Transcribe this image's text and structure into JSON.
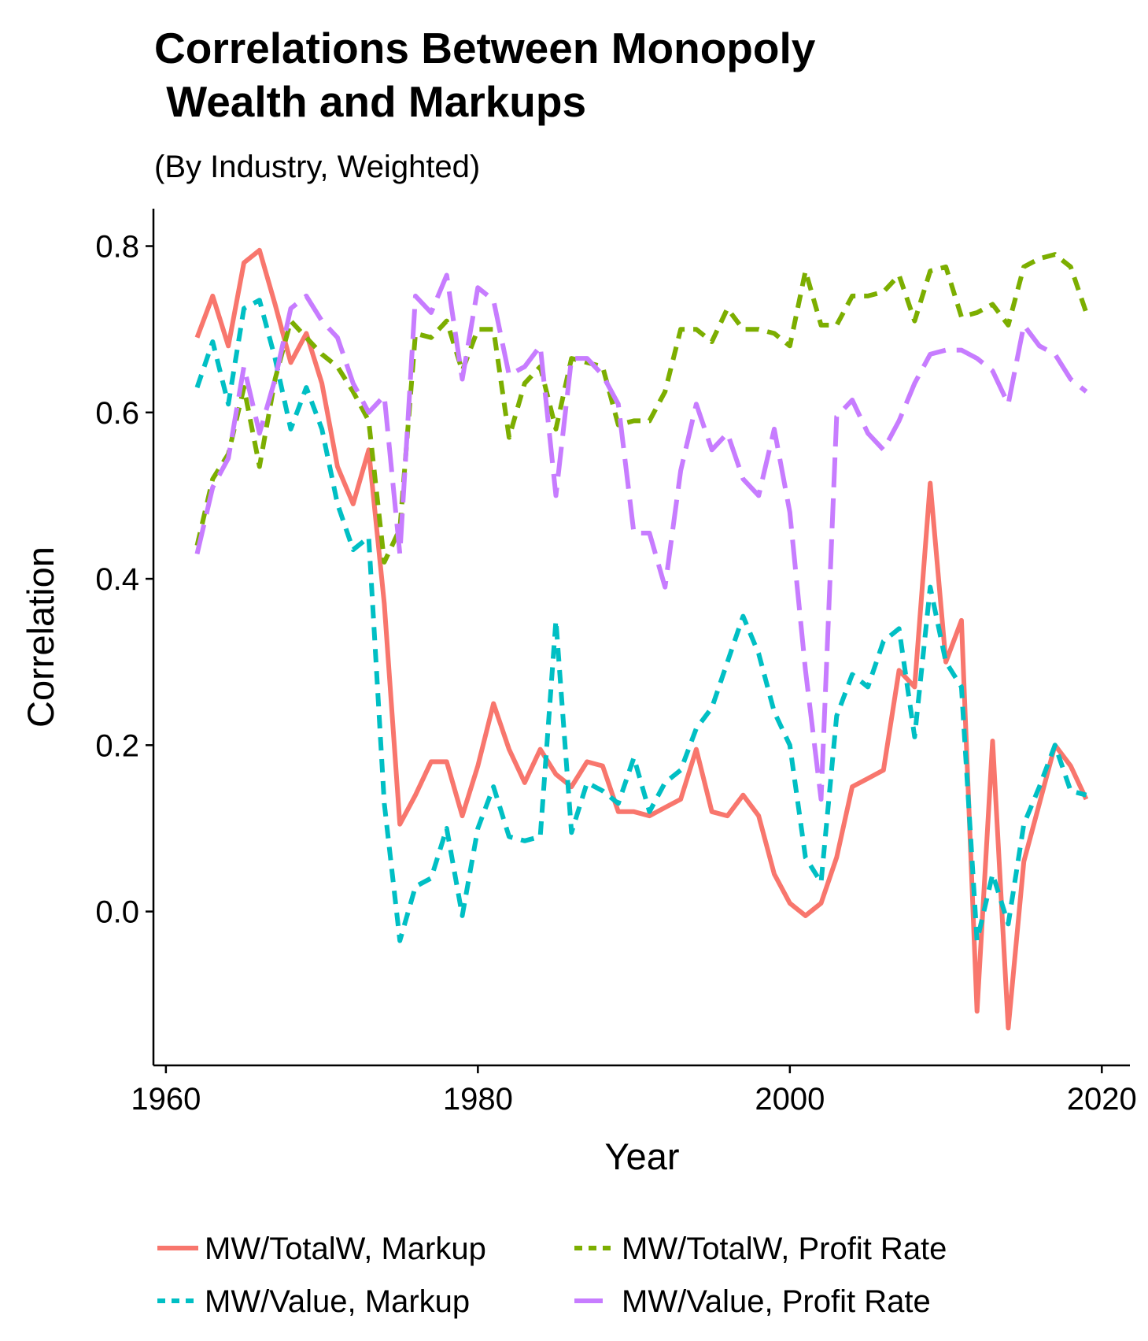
{
  "chart_data": {
    "type": "line",
    "title_lines": [
      "Correlations Between Monopoly",
      " Wealth and Markups"
    ],
    "subtitle": "(By Industry, Weighted)",
    "xlabel": "Year",
    "ylabel": "Correlation",
    "xlim": [
      1959.2,
      2021.8
    ],
    "ylim": [
      -0.185,
      0.845
    ],
    "x_ticks": [
      1960,
      1980,
      2000,
      2020
    ],
    "y_ticks": [
      0.0,
      0.2,
      0.4,
      0.6,
      0.8
    ],
    "x_tick_labels": [
      "1960",
      "1980",
      "2000",
      "2020"
    ],
    "y_tick_labels": [
      "0.0",
      "0.2",
      "0.4",
      "0.6",
      "0.8"
    ],
    "grid": false,
    "legend_position": "bottom",
    "years": [
      1962,
      1963,
      1964,
      1965,
      1966,
      1967,
      1968,
      1969,
      1970,
      1971,
      1972,
      1973,
      1974,
      1975,
      1976,
      1977,
      1978,
      1979,
      1980,
      1981,
      1982,
      1983,
      1984,
      1985,
      1986,
      1987,
      1988,
      1989,
      1990,
      1991,
      1992,
      1993,
      1994,
      1995,
      1996,
      1997,
      1998,
      1999,
      2000,
      2001,
      2002,
      2003,
      2004,
      2005,
      2006,
      2007,
      2008,
      2009,
      2010,
      2011,
      2012,
      2013,
      2014,
      2015,
      2016,
      2017,
      2018,
      2019
    ],
    "series": [
      {
        "name": "MW/TotalW, Markup",
        "color": "#F8766D",
        "dash": "solid",
        "values": [
          0.69,
          0.74,
          0.68,
          0.78,
          0.795,
          0.73,
          0.66,
          0.695,
          0.635,
          0.535,
          0.49,
          0.555,
          0.37,
          0.105,
          0.14,
          0.18,
          0.18,
          0.115,
          0.175,
          0.25,
          0.195,
          0.155,
          0.195,
          0.165,
          0.15,
          0.18,
          0.175,
          0.12,
          0.12,
          0.115,
          0.125,
          0.135,
          0.195,
          0.12,
          0.115,
          0.14,
          0.115,
          0.045,
          0.01,
          -0.005,
          0.01,
          0.065,
          0.15,
          0.16,
          0.17,
          0.29,
          0.27,
          0.515,
          0.3,
          0.35,
          -0.12,
          0.205,
          -0.14,
          0.06,
          0.13,
          0.2,
          0.175,
          0.135
        ]
      },
      {
        "name": "MW/TotalW, Profit Rate",
        "color": "#7CAE00",
        "dash": "dashed",
        "values": [
          0.44,
          0.52,
          0.55,
          0.63,
          0.535,
          0.64,
          0.71,
          0.69,
          0.67,
          0.655,
          0.625,
          0.59,
          0.42,
          0.46,
          0.695,
          0.69,
          0.71,
          0.65,
          0.7,
          0.7,
          0.57,
          0.635,
          0.655,
          0.58,
          0.665,
          0.66,
          0.655,
          0.585,
          0.59,
          0.59,
          0.625,
          0.7,
          0.7,
          0.685,
          0.725,
          0.7,
          0.7,
          0.695,
          0.68,
          0.77,
          0.705,
          0.705,
          0.74,
          0.74,
          0.745,
          0.765,
          0.71,
          0.77,
          0.775,
          0.715,
          0.72,
          0.73,
          0.705,
          0.775,
          0.785,
          0.79,
          0.775,
          0.72
        ]
      },
      {
        "name": "MW/Value, Markup",
        "color": "#00BFC4",
        "dash": "dashed",
        "values": [
          0.63,
          0.685,
          0.61,
          0.725,
          0.735,
          0.665,
          0.58,
          0.63,
          0.58,
          0.49,
          0.435,
          0.45,
          0.13,
          -0.035,
          0.03,
          0.04,
          0.1,
          -0.005,
          0.1,
          0.15,
          0.09,
          0.085,
          0.09,
          0.35,
          0.095,
          0.155,
          0.145,
          0.13,
          0.185,
          0.12,
          0.155,
          0.17,
          0.22,
          0.245,
          0.3,
          0.355,
          0.31,
          0.24,
          0.2,
          0.065,
          0.035,
          0.235,
          0.285,
          0.27,
          0.325,
          0.34,
          0.21,
          0.39,
          0.3,
          0.27,
          -0.035,
          0.045,
          -0.015,
          0.105,
          0.15,
          0.2,
          0.145,
          0.14
        ]
      },
      {
        "name": "MW/Value, Profit Rate",
        "color": "#C77CFF",
        "dash": "longdash",
        "values": [
          0.43,
          0.51,
          0.545,
          0.655,
          0.575,
          0.64,
          0.725,
          0.74,
          0.71,
          0.69,
          0.635,
          0.6,
          0.62,
          0.43,
          0.74,
          0.72,
          0.765,
          0.64,
          0.75,
          0.735,
          0.645,
          0.655,
          0.68,
          0.5,
          0.665,
          0.665,
          0.645,
          0.61,
          0.455,
          0.455,
          0.39,
          0.53,
          0.61,
          0.555,
          0.575,
          0.52,
          0.5,
          0.58,
          0.48,
          0.29,
          0.135,
          0.595,
          0.615,
          0.575,
          0.555,
          0.59,
          0.635,
          0.67,
          0.675,
          0.675,
          0.665,
          0.65,
          0.61,
          0.705,
          0.68,
          0.67,
          0.64,
          0.625
        ]
      }
    ]
  }
}
